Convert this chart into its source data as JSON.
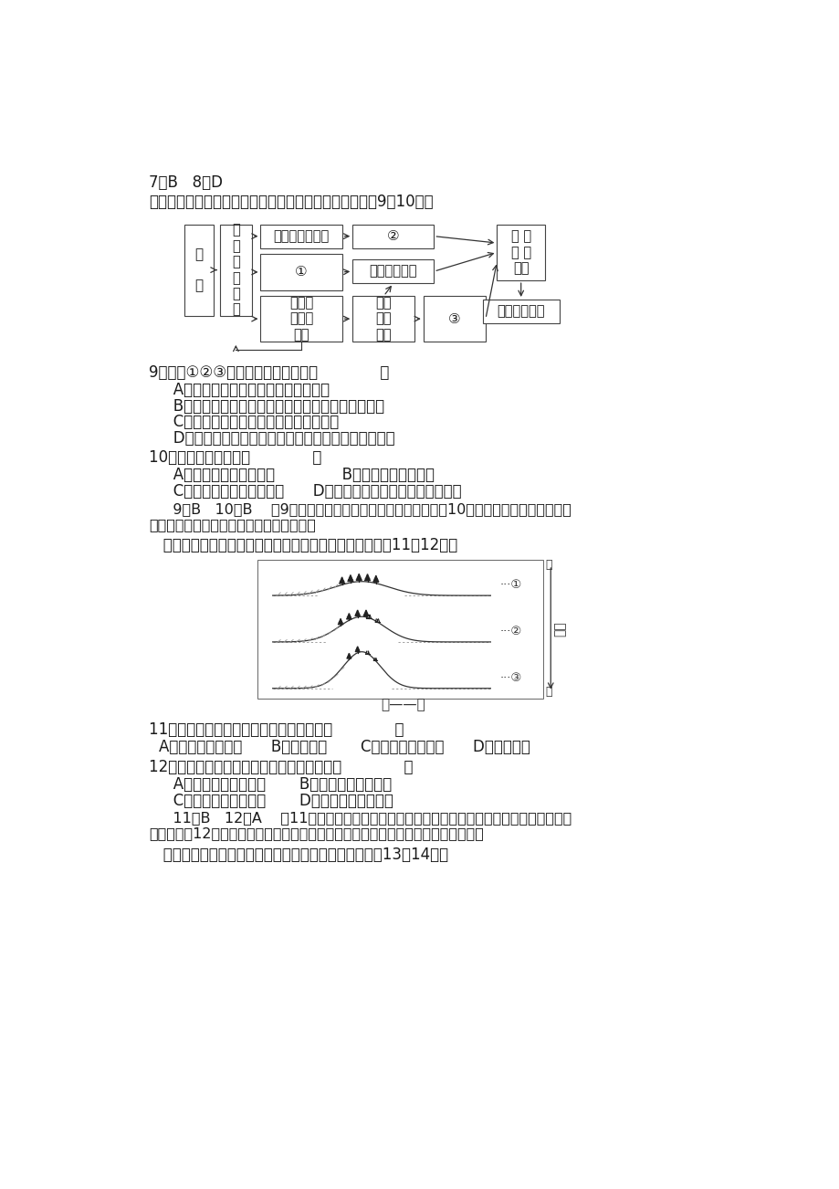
{
  "bg_color": "#ffffff",
  "text_color": "#1a1a1a",
  "header_line1": "7．B   8．D",
  "header_line2": "读我国某区域绿洲农业系统水、气、生相互作用图，完成9～10题。",
  "q9_text": "9．图中①②③所代表的环节分别是（             ）",
  "q9_A": "   A．降水增加、大陆性增强、降水减少",
  "q9_B": "   B．地面蒸发的水量增多、气温变幅减小、降水增加",
  "q9_C": "   C．气温变幅减小、蒸发增强、降水增加",
  "q9_D": "   D．地下水位上升、气温变幅变大、土壤表层盐分积累",
  "q10_text": "10．该示意图体现了（             ）",
  "q10_AB": "   A．地理环境的地域分异              B．地理环境的整体性",
  "q10_CD": "   C．自然环境的相对稳定性      D．人类对自然的改造力量是无穷的",
  "ans9_10": "   9．B   10．B    第9题，由因果关系推理，即可得出答案。第10题，图中各要素相互影响，",
  "ans9_10_2": "相互制约，反映了地理环境的整体性原理。",
  "intro2": "   下图反映了不同地质时期某地自然环境的变化，据此完成11～12题。",
  "q11_text": "11．引起图中地理环境变化的根本原因是（             ）",
  "q11_opts": "A．水热条件的变化      B．地壳运动       C．植被类型的变化      D．岩浆活动",
  "q12_text": "12．图示地理环境的演化过程，主要体现了（             ）",
  "q12_AB": "   A．地理环境的整体性       B．地理环境的差异性",
  "q12_CD": "   C．地理环境的复杂性       D．地理环境的稳定性",
  "ans11_12": "   11．B   12．A    第11题，由于地壳运动，产生了迎风坡和背风坡的差异，导致植被类型发",
  "ans11_12_2": "生改变。第12题，图示内容的变化是由地壳运动导致的，反映了地理环境的整体性。",
  "intro3": "   下图为我国某区域主要地理要素联系示意图。读图完成13～14题。"
}
